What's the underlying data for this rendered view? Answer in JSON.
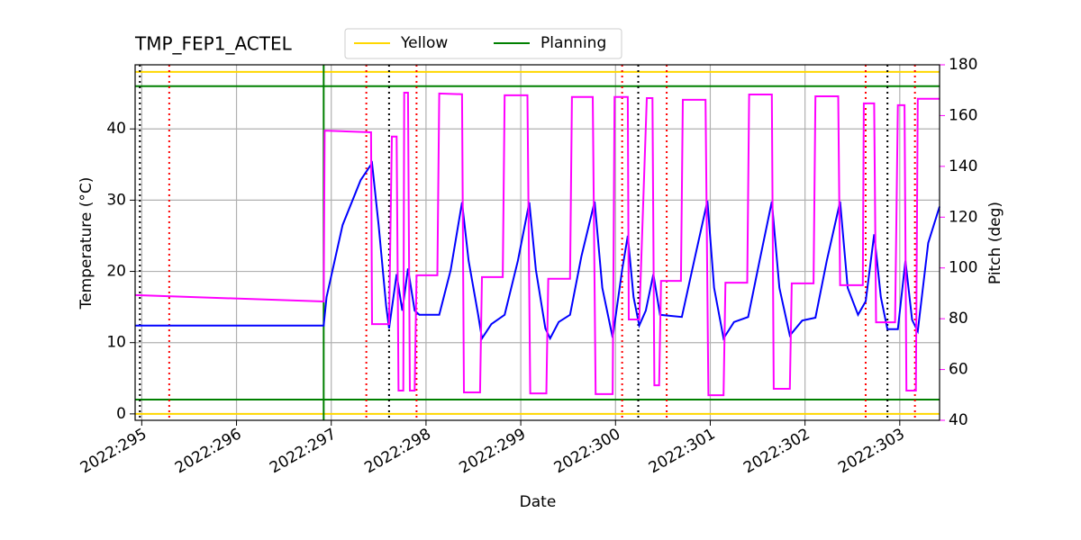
{
  "chart_data": {
    "type": "line",
    "title": "TMP_FEP1_ACTEL",
    "xlabel": "Date",
    "ylabel": "Temperature (°C)",
    "y2label": "Pitch (deg)",
    "y2color": "#ff00ff",
    "grid": true,
    "legend": "upper center",
    "xlim": [
      294.93,
      303.42
    ],
    "xticks": [
      {
        "value": 295,
        "label": "2022:295"
      },
      {
        "value": 296,
        "label": "2022:296"
      },
      {
        "value": 297,
        "label": "2022:297"
      },
      {
        "value": 298,
        "label": "2022:298"
      },
      {
        "value": 299,
        "label": "2022:299"
      },
      {
        "value": 300,
        "label": "2022:300"
      },
      {
        "value": 301,
        "label": "2022:301"
      },
      {
        "value": 302,
        "label": "2022:302"
      },
      {
        "value": 303,
        "label": "2022:303"
      }
    ],
    "ylim": [
      -0.9,
      49
    ],
    "yticks": [
      0,
      10,
      20,
      30,
      40
    ],
    "y2lim": [
      40,
      180
    ],
    "y2ticks": [
      40,
      60,
      80,
      100,
      120,
      140,
      160,
      180
    ],
    "hlines": [
      {
        "name": "Yellow",
        "color": "#ffd700",
        "values": [
          0,
          48
        ]
      },
      {
        "name": "Planning",
        "color": "#008000",
        "values": [
          2,
          46
        ]
      }
    ],
    "vlines": [
      {
        "color": "#008000",
        "style": "solid",
        "x": [
          296.92
        ]
      },
      {
        "color": "#000000",
        "style": "dotted",
        "x": [
          294.98,
          297.61,
          300.24,
          302.87
        ]
      },
      {
        "color": "#ff0000",
        "style": "dotted",
        "x": [
          295.29,
          297.37,
          297.9,
          300.07,
          300.54,
          302.64,
          303.16
        ]
      }
    ],
    "series": [
      {
        "color": "#0000ff",
        "x": [
          294.93,
          296.92,
          296.95,
          297.12,
          297.31,
          297.43,
          297.5,
          297.58,
          297.61,
          297.69,
          297.75,
          297.81,
          297.88,
          297.93,
          298.14,
          298.26,
          298.38,
          298.45,
          298.55,
          298.59,
          298.69,
          298.83,
          298.97,
          299.09,
          299.16,
          299.26,
          299.31,
          299.4,
          299.52,
          299.64,
          299.78,
          299.86,
          299.97,
          300.07,
          300.13,
          300.19,
          300.25,
          300.32,
          300.4,
          300.47,
          300.7,
          300.83,
          300.97,
          301.04,
          301.14,
          301.25,
          301.4,
          301.52,
          301.65,
          301.73,
          301.84,
          301.97,
          302.11,
          302.23,
          302.37,
          302.45,
          302.56,
          302.64,
          302.73,
          302.8,
          302.87,
          302.98,
          303.06,
          303.13,
          303.19,
          303.3,
          303.42
        ],
        "values": [
          12.4,
          12.4,
          16.4,
          26.5,
          32.8,
          35.2,
          26.5,
          15.1,
          12.0,
          19.6,
          14.5,
          20.4,
          14.5,
          13.9,
          13.9,
          20.2,
          29.7,
          21.5,
          13.9,
          10.6,
          12.6,
          13.9,
          21.5,
          29.7,
          20.2,
          12.0,
          10.6,
          12.9,
          13.9,
          22.1,
          29.8,
          17.7,
          10.7,
          20.2,
          25.0,
          16.4,
          12.4,
          14.5,
          19.6,
          13.9,
          13.6,
          21.5,
          29.9,
          17.7,
          10.6,
          12.9,
          13.6,
          21.5,
          29.8,
          17.7,
          11.0,
          13.1,
          13.5,
          21.5,
          29.8,
          17.7,
          13.9,
          15.8,
          25.2,
          16.4,
          11.9,
          11.9,
          21.5,
          13.2,
          11.6,
          24.0,
          29.1
        ]
      },
      {
        "color": "#ff00ff",
        "axis": "y2",
        "x": [
          294.93,
          296.92,
          296.93,
          297.42,
          297.43,
          297.61,
          297.64,
          297.69,
          297.71,
          297.76,
          297.77,
          297.81,
          297.83,
          297.88,
          297.9,
          298.12,
          298.14,
          298.38,
          298.4,
          298.57,
          298.59,
          298.81,
          298.83,
          299.07,
          299.1,
          299.27,
          299.29,
          299.52,
          299.54,
          299.76,
          299.79,
          299.97,
          299.99,
          300.13,
          300.14,
          300.25,
          300.33,
          300.39,
          300.41,
          300.46,
          300.48,
          300.69,
          300.71,
          300.95,
          300.98,
          301.14,
          301.16,
          301.39,
          301.41,
          301.65,
          301.67,
          301.84,
          301.86,
          302.09,
          302.11,
          302.35,
          302.37,
          302.61,
          302.62,
          302.73,
          302.75,
          302.95,
          302.98,
          303.05,
          303.07,
          303.17,
          303.19,
          303.42
        ],
        "values": [
          89.3,
          86.8,
          154.1,
          153.4,
          77.9,
          77.9,
          151.7,
          151.7,
          51.7,
          51.7,
          169.0,
          169.0,
          51.7,
          51.7,
          97.1,
          97.1,
          168.7,
          168.4,
          51.0,
          51.0,
          96.4,
          96.4,
          168.0,
          168.0,
          50.6,
          50.6,
          95.7,
          95.7,
          167.3,
          167.3,
          50.3,
          50.3,
          167.3,
          167.3,
          79.7,
          79.7,
          166.9,
          166.9,
          53.8,
          53.8,
          94.9,
          94.9,
          166.2,
          166.2,
          49.9,
          49.9,
          94.2,
          94.2,
          168.3,
          168.3,
          52.4,
          52.4,
          93.9,
          93.9,
          167.6,
          167.6,
          93.2,
          93.2,
          164.8,
          164.8,
          78.6,
          78.6,
          164.1,
          164.1,
          51.7,
          51.7,
          166.6,
          166.6
        ]
      }
    ]
  }
}
